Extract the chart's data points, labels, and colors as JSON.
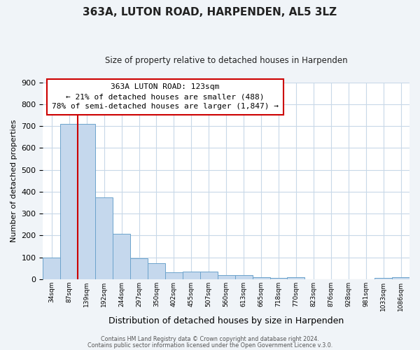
{
  "title": "363A, LUTON ROAD, HARPENDEN, AL5 3LZ",
  "subtitle": "Size of property relative to detached houses in Harpenden",
  "xlabel": "Distribution of detached houses by size in Harpenden",
  "ylabel": "Number of detached properties",
  "bin_labels": [
    "34sqm",
    "87sqm",
    "139sqm",
    "192sqm",
    "244sqm",
    "297sqm",
    "350sqm",
    "402sqm",
    "455sqm",
    "507sqm",
    "560sqm",
    "613sqm",
    "665sqm",
    "718sqm",
    "770sqm",
    "823sqm",
    "876sqm",
    "928sqm",
    "981sqm",
    "1033sqm",
    "1086sqm"
  ],
  "bar_heights": [
    100,
    710,
    710,
    375,
    207,
    95,
    72,
    30,
    35,
    35,
    18,
    20,
    10,
    5,
    10,
    0,
    0,
    0,
    0,
    5,
    10
  ],
  "bar_color": "#c5d8ed",
  "bar_edge_color": "#6ca3cc",
  "ylim": [
    0,
    900
  ],
  "yticks": [
    0,
    100,
    200,
    300,
    400,
    500,
    600,
    700,
    800,
    900
  ],
  "property_line_x": 2,
  "property_line_color": "#cc0000",
  "annotation_line1": "363A LUTON ROAD: 123sqm",
  "annotation_line2": "← 21% of detached houses are smaller (488)",
  "annotation_line3": "78% of semi-detached houses are larger (1,847) →",
  "annotation_box_color": "#ffffff",
  "annotation_box_edge_color": "#cc0000",
  "footer_line1": "Contains HM Land Registry data © Crown copyright and database right 2024.",
  "footer_line2": "Contains public sector information licensed under the Open Government Licence v.3.0.",
  "background_color": "#f0f4f8",
  "plot_background_color": "#ffffff",
  "grid_color": "#c8d8e8"
}
